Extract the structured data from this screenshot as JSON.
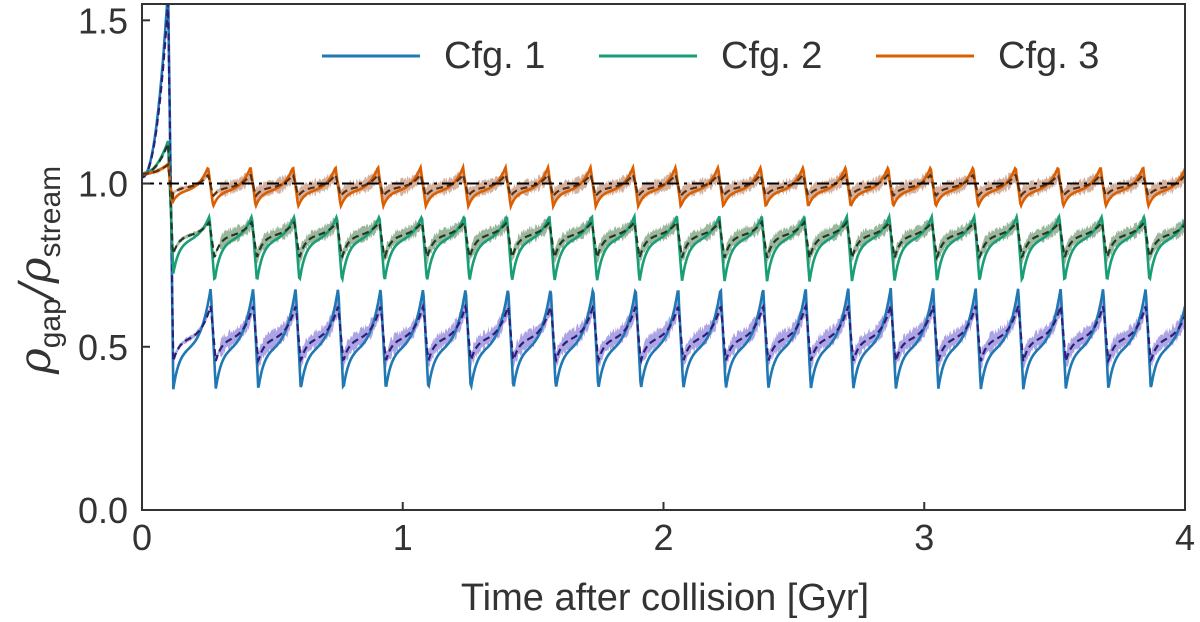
{
  "chart_data": {
    "type": "line",
    "title": "",
    "xlabel": "Time after collision [Gyr]",
    "ylabel": {
      "main": "ρ",
      "sub_num": "gap",
      "sep": "/",
      "main2": "ρ",
      "sub_den": "stream"
    },
    "xlim": [
      0,
      4
    ],
    "ylim": [
      0,
      1.55
    ],
    "xticks": [
      0,
      1,
      2,
      3,
      4
    ],
    "xtick_labels": [
      "0",
      "1",
      "2",
      "3",
      "4"
    ],
    "yticks": [
      0,
      0.5,
      1.0,
      1.5
    ],
    "ytick_labels": [
      "0.0",
      "0.5",
      "1.0",
      "1.5"
    ],
    "reference_line": {
      "y": 1.0,
      "style": "dashed",
      "color": "#000000"
    },
    "legend": {
      "placement": "top-right",
      "orientation": "horizontal"
    },
    "series": [
      {
        "name": "Cfg. 1",
        "color": "#1f78b4",
        "mean_color": "#2c1f7a",
        "band_color": "#6a5acd",
        "start": 1.02,
        "spike_peak": 1.6,
        "spike_low": 0.4,
        "baseline": 0.5,
        "peak": 0.68,
        "dip": 0.37,
        "period": 0.163,
        "first_tooth": 0.26,
        "mean_baseline": 0.52,
        "mean_peak": 0.6,
        "band_halfwidth": 0.025
      },
      {
        "name": "Cfg. 2",
        "color": "#1a9e77",
        "mean_color": "#1f3b22",
        "band_color": "#4a7a4a",
        "start": 1.03,
        "spike_peak": 1.13,
        "spike_low": 0.73,
        "baseline": 0.83,
        "peak": 0.9,
        "dip": 0.7,
        "period": 0.163,
        "first_tooth": 0.26,
        "mean_baseline": 0.84,
        "mean_peak": 0.88,
        "band_halfwidth": 0.02
      },
      {
        "name": "Cfg. 3",
        "color": "#d95f02",
        "mean_color": "#5a3010",
        "band_color": "#b07050",
        "start": 1.03,
        "spike_peak": 1.06,
        "spike_low": 0.92,
        "baseline": 0.98,
        "peak": 1.05,
        "dip": 0.93,
        "period": 0.163,
        "first_tooth": 0.26,
        "mean_baseline": 0.99,
        "mean_peak": 1.01,
        "band_halfwidth": 0.02
      }
    ]
  }
}
